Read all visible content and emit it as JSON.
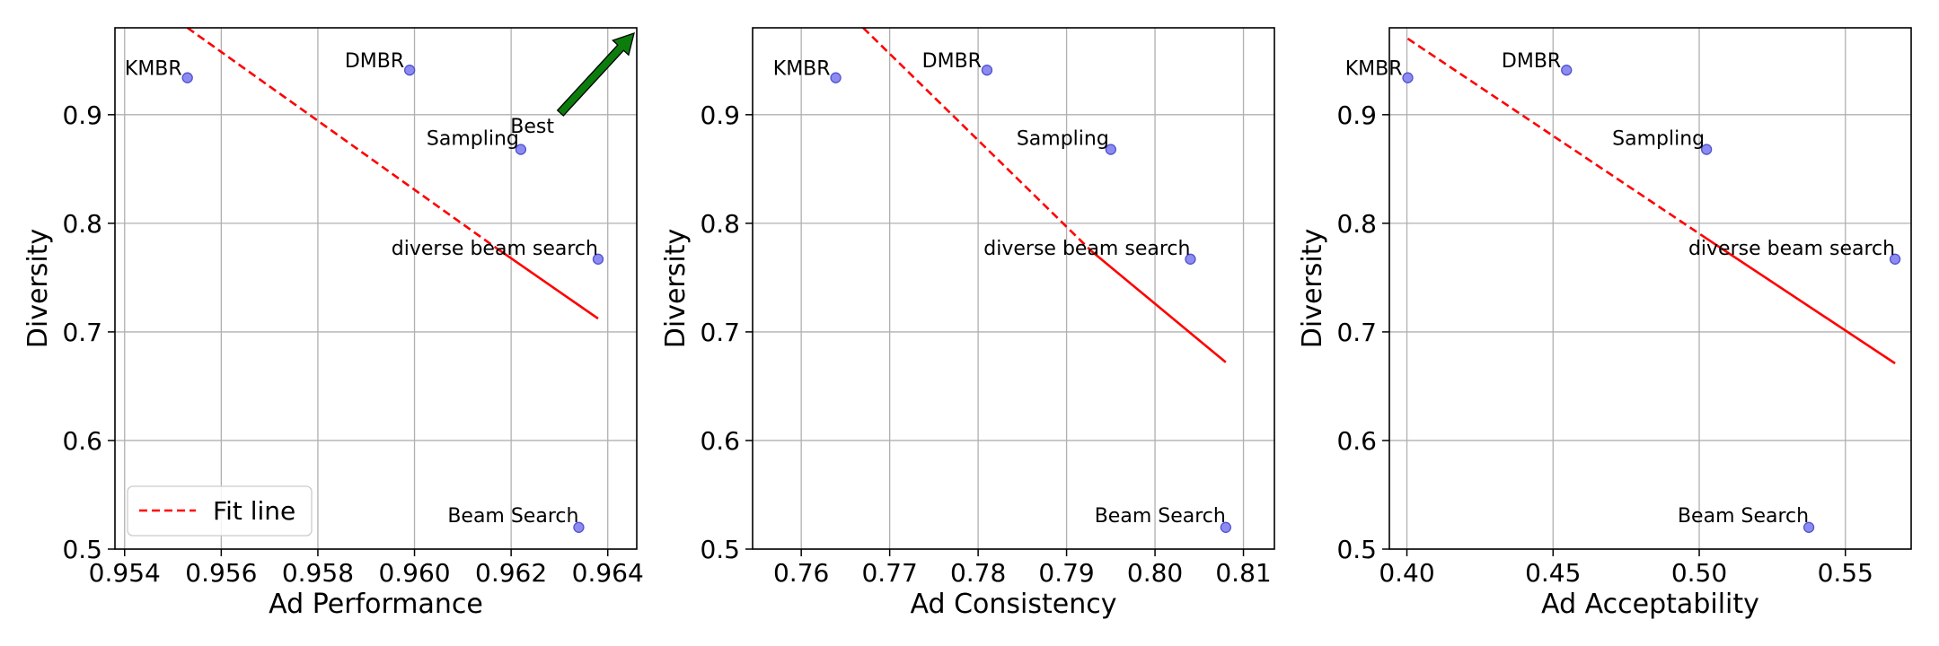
{
  "chart_data": [
    {
      "type": "scatter",
      "title": "",
      "xlabel": "Ad Performance",
      "ylabel": "Diversity",
      "xlim": [
        0.9538,
        0.9646
      ],
      "ylim": [
        0.5,
        0.98
      ],
      "xticks": [
        0.954,
        0.956,
        0.958,
        0.96,
        0.962,
        0.964
      ],
      "xtick_labels": [
        "0.954",
        "0.956",
        "0.958",
        "0.960",
        "0.962",
        "0.964"
      ],
      "yticks": [
        0.5,
        0.6,
        0.7,
        0.8,
        0.9
      ],
      "ytick_labels": [
        "0.5",
        "0.6",
        "0.7",
        "0.8",
        "0.9"
      ],
      "grid": true,
      "points": [
        {
          "name": "KMBR",
          "x": 0.9553,
          "y": 0.934
        },
        {
          "name": "DMBR",
          "x": 0.9599,
          "y": 0.941
        },
        {
          "name": "Sampling",
          "x": 0.9622,
          "y": 0.868
        },
        {
          "name": "diverse beam search",
          "x": 0.9638,
          "y": 0.767
        },
        {
          "name": "Beam Search",
          "x": 0.9634,
          "y": 0.52
        }
      ],
      "fit_line": {
        "x_start": 0.9553,
        "y_start": 0.98,
        "x_split": 0.9617,
        "x_end": 0.9638,
        "slope": -31.5,
        "y_at_split": 0.777
      },
      "legend": {
        "label": "Fit line",
        "position": "lower-left"
      },
      "best_arrow": {
        "label": "Best",
        "direction": "top-right"
      }
    },
    {
      "type": "scatter",
      "title": "",
      "xlabel": "Ad Consistency",
      "ylabel": "Diversity",
      "xlim": [
        0.7545,
        0.8135
      ],
      "ylim": [
        0.5,
        0.98
      ],
      "xticks": [
        0.76,
        0.77,
        0.78,
        0.79,
        0.8,
        0.81
      ],
      "xtick_labels": [
        "0.76",
        "0.77",
        "0.78",
        "0.79",
        "0.80",
        "0.81"
      ],
      "yticks": [
        0.5,
        0.6,
        0.7,
        0.8,
        0.9
      ],
      "ytick_labels": [
        "0.5",
        "0.6",
        "0.7",
        "0.8",
        "0.9"
      ],
      "grid": true,
      "points": [
        {
          "name": "KMBR",
          "x": 0.7639,
          "y": 0.934
        },
        {
          "name": "DMBR",
          "x": 0.781,
          "y": 0.941
        },
        {
          "name": "Sampling",
          "x": 0.795,
          "y": 0.868
        },
        {
          "name": "diverse beam search",
          "x": 0.804,
          "y": 0.767
        },
        {
          "name": "Beam Search",
          "x": 0.808,
          "y": 0.52
        }
      ],
      "fit_line": {
        "x_start": 0.767,
        "y_start": 0.98,
        "x_split": 0.7928,
        "y_at_split": 0.7745,
        "x_end": 0.808,
        "y_end": 0.672
      }
    },
    {
      "type": "scatter",
      "title": "",
      "xlabel": "Ad Acceptability",
      "ylabel": "Diversity",
      "xlim": [
        0.394,
        0.5725
      ],
      "ylim": [
        0.5,
        0.98
      ],
      "xticks": [
        0.4,
        0.45,
        0.5,
        0.55
      ],
      "xtick_labels": [
        "0.40",
        "0.45",
        "0.50",
        "0.55"
      ],
      "yticks": [
        0.5,
        0.6,
        0.7,
        0.8,
        0.9
      ],
      "ytick_labels": [
        "0.5",
        "0.6",
        "0.7",
        "0.8",
        "0.9"
      ],
      "grid": true,
      "points": [
        {
          "name": "KMBR",
          "x": 0.4003,
          "y": 0.934
        },
        {
          "name": "DMBR",
          "x": 0.4546,
          "y": 0.941
        },
        {
          "name": "Sampling",
          "x": 0.5025,
          "y": 0.868
        },
        {
          "name": "diverse beam search",
          "x": 0.567,
          "y": 0.767
        },
        {
          "name": "Beam Search",
          "x": 0.5375,
          "y": 0.52
        }
      ],
      "fit_line": {
        "x_start": 0.4003,
        "y_start": 0.97,
        "x_split": 0.5025,
        "y_at_split": 0.786,
        "x_end": 0.567,
        "y_end": 0.671
      }
    }
  ],
  "colors": {
    "fit_line": "#ff0000",
    "marker_fill": "#8c8cf0",
    "marker_edge": "#5050d0",
    "arrow_fill": "#0c7d0c",
    "grid": "#b0b0b0"
  }
}
